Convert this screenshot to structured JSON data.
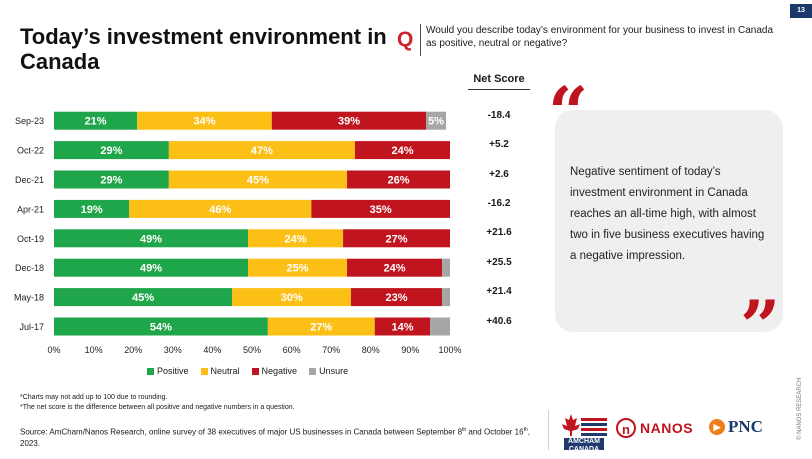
{
  "page": {
    "number": "13"
  },
  "title": "Today’s investment environment in Canada",
  "question": {
    "letter": "Q",
    "text": "Would you describe today’s environment for your business to invest in Canada as positive, neutral or negative?"
  },
  "net_score": {
    "header": "Net Score",
    "values": [
      "-18.4",
      "+5.2",
      "+2.6",
      "-16.2",
      "+21.6",
      "+25.5",
      "+21.4",
      "+40.6"
    ]
  },
  "chart_data": {
    "type": "bar",
    "orientation": "horizontal",
    "stacked": true,
    "categories": [
      "Sep-23",
      "Oct-22",
      "Dec-21",
      "Apr-21",
      "Oct-19",
      "Dec-18",
      "May-18",
      "Jul-17"
    ],
    "series": [
      {
        "name": "Positive",
        "color": "#1fa64a",
        "values": [
          21,
          29,
          29,
          19,
          49,
          49,
          45,
          54
        ],
        "labels": [
          "21%",
          "29%",
          "29%",
          "19%",
          "49%",
          "49%",
          "45%",
          "54%"
        ]
      },
      {
        "name": "Neutral",
        "color": "#fbbf16",
        "values": [
          34,
          47,
          45,
          46,
          24,
          25,
          30,
          27
        ],
        "labels": [
          "34%",
          "47%",
          "45%",
          "46%",
          "24%",
          "25%",
          "30%",
          "27%"
        ]
      },
      {
        "name": "Negative",
        "color": "#c0141e",
        "values": [
          39,
          24,
          26,
          35,
          27,
          24,
          23,
          14
        ],
        "labels": [
          "39%",
          "24%",
          "26%",
          "35%",
          "27%",
          "24%",
          "23%",
          "14%"
        ]
      },
      {
        "name": "Unsure",
        "color": "#a6a6a6",
        "values": [
          5,
          0,
          0,
          0,
          0,
          2,
          2,
          5
        ],
        "labels": [
          "5%",
          "",
          "",
          "",
          "",
          "",
          "",
          ""
        ]
      }
    ],
    "xlim": [
      0,
      100
    ],
    "xticks": [
      "0%",
      "10%",
      "20%",
      "30%",
      "40%",
      "50%",
      "60%",
      "70%",
      "80%",
      "90%",
      "100%"
    ],
    "grid": false,
    "legend": "bottom"
  },
  "callout": {
    "text": "Negative sentiment of today’s investment environment in Canada reaches an all-time high, with almost two in five business executives having a negative impression."
  },
  "footnotes": [
    "*Charts may not add up to 100 due to rounding.",
    "*The net score is the difference between all positive and negative numbers in a question."
  ],
  "source": {
    "text": "Source: AmCham/Nanos Research, online survey of 38 executives of major US businesses in Canada between September 8",
    "sup1": "th",
    "text2": " and October 16",
    "sup2": "th",
    "text3": ", 2023."
  },
  "logos": {
    "amcham": "AMCHAM CANADA",
    "nanos": "NANOS",
    "nanos_mark": "n",
    "pnc": "PNC",
    "pnc_mark": "▶"
  },
  "copyright": "© NANOS RESEARCH"
}
